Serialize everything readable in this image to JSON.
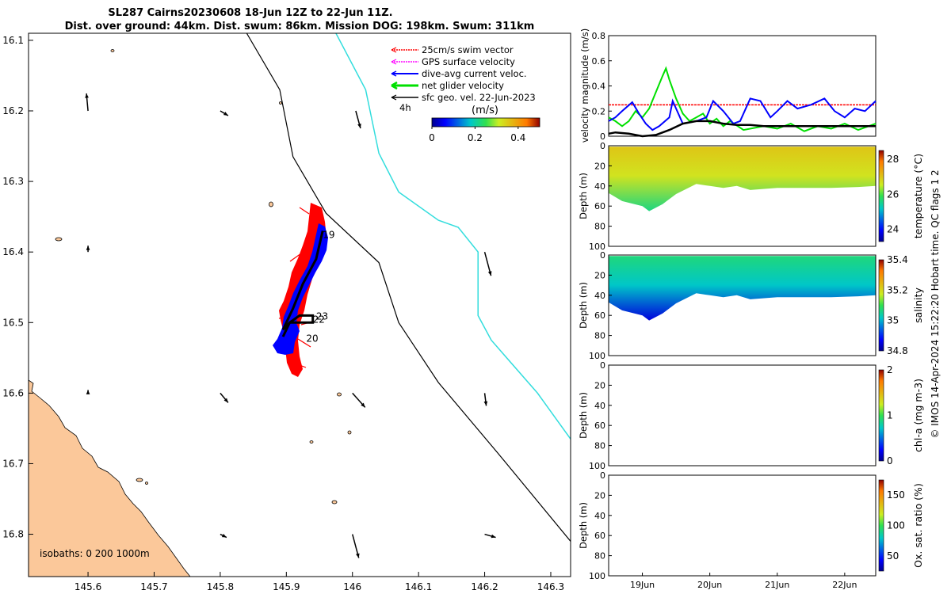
{
  "title_line1": "SL287 Cairns20230608 18-Jun 12Z to 22-Jun 11Z.",
  "title_line2": "Dist. over ground: 44km. Dist. swum: 86km. Mission DOG: 198km. Swum: 311km",
  "copyright": "© IMOS 14-Apr-2024 15:22:20 Hobart time. QC flags 1  2",
  "colors": {
    "land": "#fbc89a",
    "swim": "#ff0000",
    "gps": "#ff00ff",
    "diveavg": "#0000ff",
    "net": "#00e000",
    "track": "#000000",
    "isobath_cyan": "#33dddd"
  },
  "chart_data": [
    {
      "type": "map",
      "xlabel": "",
      "ylabel": "",
      "xlim": [
        145.51,
        146.33
      ],
      "ylim": [
        -16.86,
        -16.09
      ],
      "xticks": [
        "145.6",
        "145.7",
        "145.8",
        "145.9",
        "146",
        "146.1",
        "146.2",
        "146.3"
      ],
      "xtick_values": [
        145.6,
        145.7,
        145.8,
        145.9,
        146.0,
        146.1,
        146.2,
        146.3
      ],
      "yticks": [
        "16.1",
        "16.2",
        "16.3",
        "16.4",
        "16.5",
        "16.6",
        "16.7",
        "16.8"
      ],
      "ytick_values": [
        -16.1,
        -16.2,
        -16.3,
        -16.4,
        -16.5,
        -16.6,
        -16.7,
        -16.8
      ],
      "legend": {
        "placement": "top-right",
        "entries": [
          "25cm/s swim vector",
          "GPS surface velocity",
          "dive-avg current veloc.",
          "net glider velocity",
          "sfc geo. vel. 22-Jun-2023"
        ]
      },
      "colorbar": {
        "label": "(m/s)",
        "ticks": [
          "0",
          "0.2",
          "0.4"
        ],
        "range": [
          0,
          0.5
        ]
      },
      "time_label": "4h",
      "isobaths_label": "isobaths: 0   200  1000m",
      "day_labels": [
        {
          "text": "19",
          "lon": 145.955,
          "lat": -16.38
        },
        {
          "text": "22",
          "lon": 145.94,
          "lat": -16.5
        },
        {
          "text": "23",
          "lon": 145.945,
          "lat": -16.496
        },
        {
          "text": "20",
          "lon": 145.93,
          "lat": -16.527
        }
      ],
      "isobath_200": [
        [
          145.84,
          -16.09
        ],
        [
          145.89,
          -16.17
        ],
        [
          145.91,
          -16.265
        ],
        [
          145.96,
          -16.345
        ],
        [
          146.04,
          -16.415
        ],
        [
          146.07,
          -16.5
        ],
        [
          146.13,
          -16.585
        ],
        [
          146.22,
          -16.685
        ],
        [
          146.33,
          -16.81
        ]
      ],
      "isobath_1000": [
        [
          145.975,
          -16.09
        ],
        [
          146.02,
          -16.17
        ],
        [
          146.04,
          -16.26
        ],
        [
          146.07,
          -16.315
        ],
        [
          146.13,
          -16.355
        ],
        [
          146.16,
          -16.365
        ],
        [
          146.19,
          -16.4
        ],
        [
          146.19,
          -16.49
        ],
        [
          146.21,
          -16.525
        ],
        [
          146.28,
          -16.6
        ],
        [
          146.33,
          -16.665
        ]
      ],
      "glider_track": [
        [
          145.955,
          -16.37
        ],
        [
          145.945,
          -16.41
        ],
        [
          145.925,
          -16.445
        ],
        [
          145.91,
          -16.48
        ],
        [
          145.895,
          -16.51
        ],
        [
          145.905,
          -16.5
        ],
        [
          145.92,
          -16.49
        ],
        [
          145.94,
          -16.49
        ],
        [
          145.94,
          -16.5
        ],
        [
          145.905,
          -16.5
        ],
        [
          145.895,
          -16.52
        ]
      ],
      "sfc_geo_arrows": [
        {
          "lon": 145.6,
          "lat": -16.2,
          "dlon": -0.005,
          "dlat": 0.025
        },
        {
          "lon": 145.8,
          "lat": -16.2,
          "dlon": 0.0,
          "dlat": 0.0
        },
        {
          "lon": 146.005,
          "lat": -16.2,
          "dlon": 0.0,
          "dlat": 0.0
        },
        {
          "lon": 145.6,
          "lat": -16.4,
          "dlon": 0.0,
          "dlat": 0.0
        },
        {
          "lon": 146.2,
          "lat": -16.4,
          "dlon": 0.0,
          "dlat": 0.0
        },
        {
          "lon": 145.6,
          "lat": -16.6,
          "dlon": 0.0,
          "dlat": 0.0
        },
        {
          "lon": 145.8,
          "lat": -16.6,
          "dlon": 0.0,
          "dlat": 0.0
        },
        {
          "lon": 146.0,
          "lat": -16.6,
          "dlon": 0.0,
          "dlat": 0.0
        },
        {
          "lon": 146.2,
          "lat": -16.6,
          "dlon": 0.0,
          "dlat": 0.0
        },
        {
          "lon": 145.8,
          "lat": -16.8,
          "dlon": 0.0,
          "dlat": 0.0
        },
        {
          "lon": 146.0,
          "lat": -16.8,
          "dlon": 0.0,
          "dlat": 0.0
        },
        {
          "lon": 146.2,
          "lat": -16.8,
          "dlon": 0.0,
          "dlat": 0.0
        }
      ]
    },
    {
      "type": "line",
      "ylabel": "velocity magnitude (m/s)",
      "ylim": [
        0,
        0.8
      ],
      "yticks": [
        "0",
        "0.2",
        "0.4",
        "0.6",
        "0.8"
      ],
      "xlim": [
        18.5,
        22.46
      ],
      "swim_ref": 0.25,
      "series": [
        {
          "color": "#00e000",
          "x": [
            18.5,
            18.6,
            18.7,
            18.8,
            18.9,
            19.0,
            19.1,
            19.2,
            19.3,
            19.35,
            19.4,
            19.5,
            19.6,
            19.7,
            19.8,
            19.9,
            20.0,
            20.1,
            20.2,
            20.3,
            20.5,
            20.8,
            21.0,
            21.2,
            21.4,
            21.6,
            21.8,
            22.0,
            22.2,
            22.46
          ],
          "y": [
            0.15,
            0.12,
            0.08,
            0.12,
            0.2,
            0.15,
            0.22,
            0.35,
            0.48,
            0.54,
            0.45,
            0.3,
            0.18,
            0.12,
            0.15,
            0.18,
            0.1,
            0.14,
            0.08,
            0.12,
            0.05,
            0.08,
            0.06,
            0.1,
            0.04,
            0.08,
            0.06,
            0.1,
            0.05,
            0.1
          ]
        },
        {
          "color": "#0000ff",
          "x": [
            18.5,
            18.6,
            18.7,
            18.85,
            18.95,
            19.05,
            19.15,
            19.25,
            19.4,
            19.45,
            19.6,
            19.8,
            19.95,
            20.05,
            20.2,
            20.35,
            20.45,
            20.6,
            20.75,
            20.9,
            21.0,
            21.15,
            21.3,
            21.5,
            21.7,
            21.85,
            22.0,
            22.15,
            22.3,
            22.46
          ],
          "y": [
            0.12,
            0.15,
            0.2,
            0.27,
            0.18,
            0.1,
            0.05,
            0.08,
            0.15,
            0.28,
            0.1,
            0.12,
            0.15,
            0.28,
            0.2,
            0.1,
            0.12,
            0.3,
            0.28,
            0.15,
            0.2,
            0.28,
            0.22,
            0.25,
            0.3,
            0.2,
            0.15,
            0.22,
            0.2,
            0.28
          ]
        },
        {
          "color": "#000000",
          "x": [
            18.5,
            18.6,
            18.8,
            19.0,
            19.2,
            19.4,
            19.6,
            19.8,
            20.0,
            20.2,
            20.4,
            20.6,
            20.8,
            21.0,
            21.2,
            21.4,
            21.6,
            21.8,
            22.0,
            22.2,
            22.46
          ],
          "y": [
            0.02,
            0.03,
            0.02,
            0.0,
            0.01,
            0.05,
            0.1,
            0.12,
            0.12,
            0.1,
            0.09,
            0.09,
            0.08,
            0.08,
            0.08,
            0.08,
            0.08,
            0.08,
            0.08,
            0.08,
            0.08
          ]
        }
      ]
    },
    {
      "type": "heatmap",
      "ylabel": "Depth (m)",
      "colorbar_label": "temperature (°C)",
      "clim": [
        23.3,
        28.5
      ],
      "cticks": [
        "24",
        "26",
        "28"
      ],
      "ylim": [
        0,
        100
      ],
      "yticks": [
        "0",
        "20",
        "40",
        "60",
        "80",
        "100"
      ],
      "xlim": [
        18.5,
        22.46
      ],
      "surface_value": 27.0,
      "bottom_value": 25.6,
      "bottom_depth_x": [
        18.5,
        18.7,
        19.0,
        19.1,
        19.3,
        19.5,
        19.8,
        20.0,
        20.2,
        20.4,
        20.6,
        21.0,
        21.4,
        21.8,
        22.2,
        22.46
      ],
      "bottom_depth_y": [
        47,
        55,
        60,
        65,
        58,
        48,
        38,
        40,
        42,
        40,
        44,
        42,
        42,
        42,
        41,
        40
      ]
    },
    {
      "type": "heatmap",
      "ylabel": "Depth (m)",
      "colorbar_label": "salinity",
      "clim": [
        34.8,
        35.4
      ],
      "cticks": [
        "34.8",
        "35",
        "35.2",
        "35.4"
      ],
      "ylim": [
        0,
        100
      ],
      "yticks": [
        "0",
        "20",
        "40",
        "60",
        "80",
        "100"
      ],
      "xlim": [
        18.5,
        22.46
      ],
      "surface_value": 35.07,
      "bottom_value": 34.85,
      "bottom_depth_x": [
        18.5,
        18.7,
        19.0,
        19.1,
        19.3,
        19.5,
        19.8,
        20.0,
        20.2,
        20.4,
        20.6,
        21.0,
        21.4,
        21.8,
        22.2,
        22.46
      ],
      "bottom_depth_y": [
        47,
        55,
        60,
        65,
        58,
        48,
        38,
        40,
        42,
        40,
        44,
        42,
        42,
        42,
        41,
        40
      ]
    },
    {
      "type": "heatmap",
      "ylabel": "Depth (m)",
      "colorbar_label": "chl-a (mg m-3)",
      "clim": [
        0,
        2
      ],
      "cticks": [
        "0",
        "1",
        "2"
      ],
      "ylim": [
        0,
        100
      ],
      "yticks": [
        "0",
        "20",
        "40",
        "60",
        "80",
        "100"
      ],
      "xlim": [
        18.5,
        22.46
      ]
    },
    {
      "type": "heatmap",
      "ylabel": "Depth (m)",
      "colorbar_label": "Ox. sat. ratio (%)",
      "clim": [
        25,
        175
      ],
      "cticks": [
        "50",
        "100",
        "150"
      ],
      "ylim": [
        0,
        100
      ],
      "yticks": [
        "0",
        "20",
        "40",
        "60",
        "80",
        "100"
      ],
      "xlim": [
        18.5,
        22.46
      ],
      "xticks": [
        "19Jun",
        "20Jun",
        "21Jun",
        "22Jun"
      ],
      "xtick_values": [
        19,
        20,
        21,
        22
      ]
    }
  ]
}
